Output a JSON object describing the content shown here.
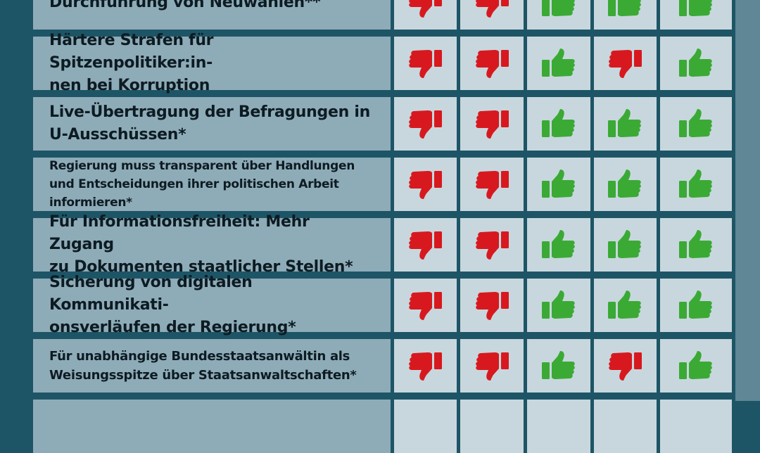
{
  "rows": [
    {
      "lines": [
        "Durchführung von Neuwahlen**"
      ]
    },
    {
      "lines": [
        "Härtere Strafen für Spitzenpolitiker:in-",
        "nen bei Korruption"
      ]
    },
    {
      "lines": [
        "Live-Übertragung der Befragungen in",
        "U-Ausschüssen*"
      ]
    },
    {
      "lines": [
        "Regierung muss transparent über Handlungen",
        "und Entscheidungen ihrer politischen Arbeit",
        "informieren*"
      ]
    },
    {
      "lines": [
        "Für Informationsfreiheit: Mehr Zugang",
        "zu Dokumenten staatlicher Stellen*"
      ]
    },
    {
      "lines": [
        "Sicherung von digitalen Kommunikati-",
        "onsverläufen der Regierung*"
      ]
    },
    {
      "lines": [
        "Für unabhängige Bundesstaatsanwältin als",
        "Weisungsspitze über Staatsanwaltschaften*"
      ]
    }
  ]
}
